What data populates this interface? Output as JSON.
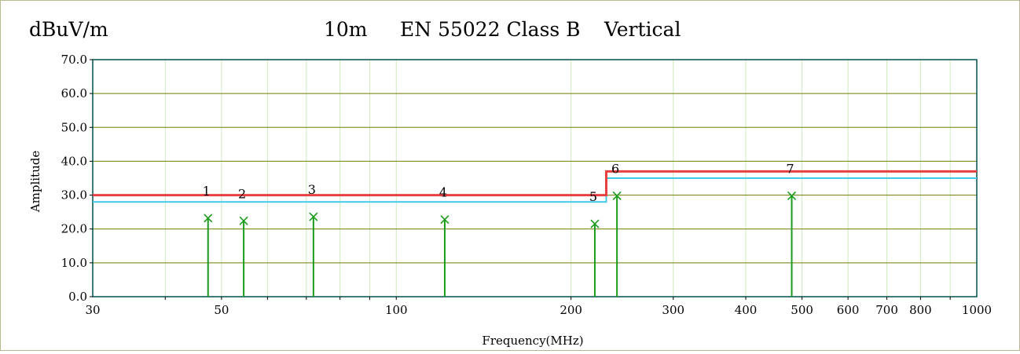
{
  "header": {
    "unit": "dBuV/m",
    "distance": "10m",
    "standard": "EN 55022 Class B",
    "polarization": "Vertical"
  },
  "chart_data": {
    "type": "scatter",
    "xlabel": "Frequency(MHz)",
    "ylabel": "Amplitude",
    "x_scale": "log",
    "xlim": [
      30,
      1000
    ],
    "ylim": [
      0,
      70
    ],
    "x_ticks": [
      30,
      50,
      100,
      200,
      300,
      400,
      500,
      600,
      700,
      800,
      1000
    ],
    "x_tick_labels": [
      "30",
      "50",
      "100",
      "200",
      "300",
      "400",
      "500",
      "600",
      "700",
      "800",
      "1000"
    ],
    "y_ticks": [
      0,
      10,
      20,
      30,
      40,
      50,
      60,
      70
    ],
    "y_tick_labels": [
      "0.0",
      "10.0",
      "20.0",
      "30.0",
      "40.0",
      "50.0",
      "60.0",
      "70.0"
    ],
    "grid": true,
    "limit_line": {
      "x": [
        30,
        230,
        230,
        1000
      ],
      "y": [
        30,
        30,
        37,
        37
      ],
      "color": "#e84040"
    },
    "margin_line": {
      "x": [
        30,
        230,
        230,
        1000
      ],
      "y": [
        28,
        28,
        35,
        35
      ],
      "color": "#40c8e8"
    },
    "measurements": [
      {
        "label": "1",
        "freq": 47.4,
        "level": 23.2
      },
      {
        "label": "2",
        "freq": 54.6,
        "level": 22.4
      },
      {
        "label": "3",
        "freq": 72.0,
        "level": 23.6
      },
      {
        "label": "4",
        "freq": 121.2,
        "level": 22.8
      },
      {
        "label": "5",
        "freq": 219.8,
        "level": 21.5
      },
      {
        "label": "6",
        "freq": 240.0,
        "level": 29.8
      },
      {
        "label": "7",
        "freq": 480.0,
        "level": 29.8
      }
    ],
    "colors": {
      "plot_border": "#005050",
      "horizontal_grid": "#6e7a00",
      "vertical_grid": "#ccebbf",
      "measurement": "#1a9b1a"
    }
  }
}
